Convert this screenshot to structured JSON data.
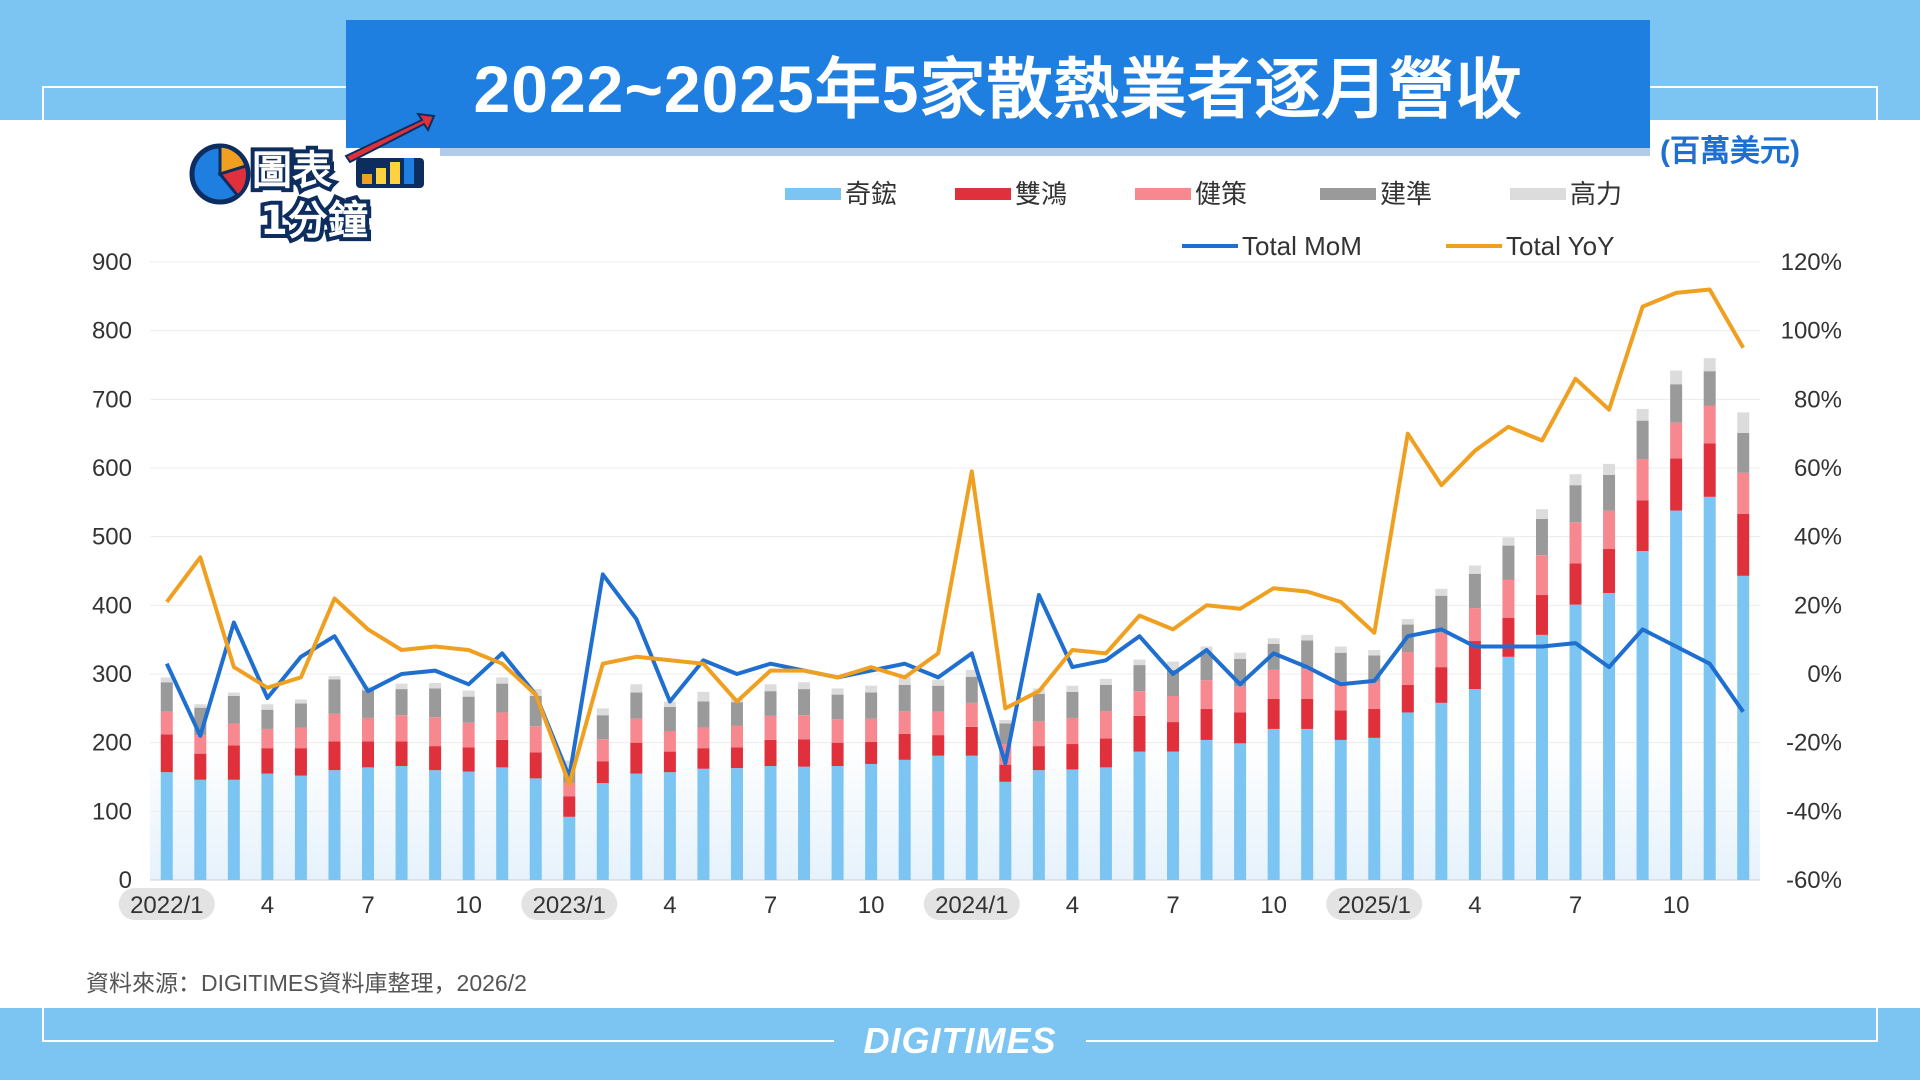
{
  "title": "2022~2025年5家散熱業者逐月營收",
  "unit": "(百萬美元)",
  "logo": {
    "line1": "圖表",
    "line2": "1分鐘"
  },
  "source": "資料來源：DIGITIMES資料庫整理，2026/2",
  "brand": "DIGITIMES",
  "colors": {
    "band": "#7cc4f2",
    "title_bg": "#1f7fe0",
    "qihong": "#7cc4f2",
    "shuanghong": "#e0303c",
    "jiance": "#f7888f",
    "jianzhun": "#9a9a9a",
    "gaoli": "#dcdcdc",
    "mom": "#1f6fd0",
    "yoy": "#f0a020"
  },
  "chart_data": {
    "type": "bar",
    "stacked": true,
    "categories": [
      "2022/1",
      "2022/2",
      "2022/3",
      "2022/4",
      "2022/5",
      "2022/6",
      "2022/7",
      "2022/8",
      "2022/9",
      "2022/10",
      "2022/11",
      "2022/12",
      "2023/1",
      "2023/2",
      "2023/3",
      "2023/4",
      "2023/5",
      "2023/6",
      "2023/7",
      "2023/8",
      "2023/9",
      "2023/10",
      "2023/11",
      "2023/12",
      "2024/1",
      "2024/2",
      "2024/3",
      "2024/4",
      "2024/5",
      "2024/6",
      "2024/7",
      "2024/8",
      "2024/9",
      "2024/10",
      "2024/11",
      "2024/12",
      "2025/1",
      "2025/2",
      "2025/3",
      "2025/4",
      "2025/5",
      "2025/6",
      "2025/7",
      "2025/8",
      "2025/9",
      "2025/10",
      "2025/11",
      "2025/12"
    ],
    "x_tick_labels": [
      "2022/1",
      "4",
      "7",
      "10",
      "2023/1",
      "4",
      "7",
      "10",
      "2024/1",
      "4",
      "7",
      "10",
      "2025/1",
      "4",
      "7",
      "10"
    ],
    "x_tick_indices": [
      0,
      3,
      6,
      9,
      12,
      15,
      18,
      21,
      24,
      27,
      30,
      33,
      36,
      39,
      42,
      45
    ],
    "boxed_tick_labels": [
      "2022/1",
      "2023/1",
      "2024/1",
      "2025/1"
    ],
    "series": [
      {
        "name": "奇鋐",
        "axis": "left",
        "values": [
          157,
          146,
          146,
          155,
          152,
          160,
          164,
          166,
          160,
          158,
          164,
          148,
          92,
          141,
          155,
          157,
          162,
          163,
          166,
          165,
          166,
          169,
          175,
          181,
          181,
          143,
          160,
          161,
          164,
          187,
          187,
          204,
          199,
          220,
          220,
          204,
          207,
          244,
          258,
          278,
          325,
          357,
          401,
          418,
          479,
          538,
          558,
          443
        ]
      },
      {
        "name": "雙鴻",
        "axis": "left",
        "values": [
          55,
          38,
          50,
          37,
          40,
          42,
          38,
          36,
          35,
          35,
          40,
          38,
          30,
          32,
          45,
          30,
          30,
          30,
          38,
          40,
          34,
          32,
          38,
          30,
          42,
          25,
          35,
          37,
          42,
          52,
          43,
          45,
          45,
          44,
          44,
          43,
          42,
          40,
          52,
          70,
          57,
          58,
          60,
          64,
          74,
          76,
          78,
          90
        ]
      },
      {
        "name": "健策",
        "axis": "left",
        "values": [
          33,
          27,
          32,
          28,
          30,
          40,
          34,
          38,
          42,
          36,
          40,
          38,
          20,
          32,
          35,
          30,
          30,
          32,
          35,
          35,
          34,
          34,
          33,
          34,
          35,
          30,
          36,
          38,
          40,
          36,
          38,
          42,
          38,
          42,
          43,
          42,
          40,
          48,
          50,
          48,
          55,
          58,
          60,
          56,
          60,
          52,
          55,
          60
        ]
      },
      {
        "name": "建準",
        "axis": "left",
        "values": [
          43,
          40,
          40,
          28,
          35,
          50,
          40,
          38,
          42,
          38,
          42,
          44,
          20,
          35,
          38,
          35,
          38,
          34,
          36,
          38,
          36,
          38,
          38,
          38,
          38,
          30,
          40,
          38,
          38,
          38,
          38,
          40,
          40,
          38,
          42,
          42,
          38,
          40,
          54,
          50,
          50,
          53,
          54,
          52,
          56,
          56,
          50,
          58
        ]
      },
      {
        "name": "高力",
        "axis": "left",
        "values": [
          7,
          5,
          5,
          8,
          6,
          5,
          6,
          8,
          8,
          9,
          9,
          10,
          12,
          10,
          12,
          8,
          14,
          6,
          10,
          10,
          9,
          10,
          12,
          9,
          10,
          5,
          8,
          9,
          9,
          8,
          12,
          9,
          9,
          8,
          8,
          9,
          8,
          8,
          10,
          12,
          12,
          14,
          16,
          16,
          17,
          20,
          19,
          30
        ]
      },
      {
        "name": "Total MoM",
        "axis": "right",
        "type": "line",
        "values": [
          3,
          -18,
          15,
          -7,
          5,
          11,
          -5,
          0,
          1,
          -3,
          6,
          -6,
          -30,
          29,
          16,
          -8,
          4,
          0,
          3,
          1,
          -1,
          1,
          3,
          -1,
          6,
          -26,
          23,
          2,
          4,
          11,
          0,
          7,
          -3,
          6,
          2,
          -3,
          -2,
          11,
          13,
          8,
          8,
          8,
          9,
          2,
          13,
          8,
          3,
          -11
        ]
      },
      {
        "name": "Total YoY",
        "axis": "right",
        "type": "line",
        "values": [
          21,
          34,
          2,
          -4,
          -1,
          22,
          13,
          7,
          8,
          7,
          3,
          -6,
          -32,
          3,
          5,
          4,
          3,
          -8,
          1,
          1,
          -1,
          2,
          -1,
          6,
          59,
          -10,
          -5,
          7,
          6,
          17,
          13,
          20,
          19,
          25,
          24,
          21,
          12,
          70,
          55,
          65,
          72,
          68,
          86,
          77,
          107,
          111,
          112,
          95
        ]
      }
    ],
    "legend": [
      "奇鋐",
      "雙鴻",
      "健策",
      "建準",
      "高力",
      "Total MoM",
      "Total YoY"
    ],
    "legend_position": "top-right",
    "ylim": [
      0,
      900
    ],
    "yticks": [
      "0",
      "100",
      "200",
      "300",
      "400",
      "500",
      "600",
      "700",
      "800",
      "900"
    ],
    "y2lim": [
      -60,
      120
    ],
    "y2ticks": [
      "-60%",
      "-40%",
      "-20%",
      "0%",
      "20%",
      "40%",
      "60%",
      "80%",
      "100%",
      "120%"
    ],
    "xlabel": "",
    "ylabel": "",
    "grid": true
  }
}
